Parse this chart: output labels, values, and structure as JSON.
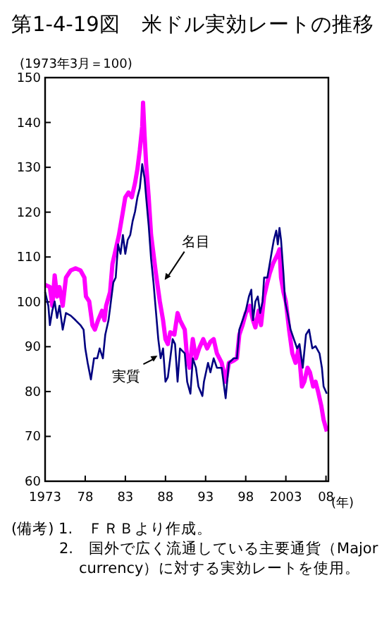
{
  "chart_data": {
    "type": "line",
    "title": "第1-4-19図　米ドル実効レートの推移",
    "ylabel": "(1973年3月＝100)",
    "xlabel": "(年)",
    "xlim": [
      1973,
      2008.3
    ],
    "ylim": [
      60,
      150
    ],
    "xticks": [
      1973,
      {
        "value": 1978,
        "label": "78"
      },
      {
        "value": 1983,
        "label": "83"
      },
      {
        "value": 1988,
        "label": "88"
      },
      {
        "value": 1993,
        "label": "93"
      },
      {
        "value": 1998,
        "label": "98"
      },
      2003,
      {
        "value": 2008,
        "label": "08"
      }
    ],
    "yticks": [
      60,
      70,
      80,
      90,
      100,
      110,
      120,
      130,
      140,
      150
    ],
    "marker": "none",
    "line_style": "solid",
    "series": [
      {
        "color": "#ff00ff",
        "x": [
          1973.0,
          1973.6,
          1973.9,
          1974.2,
          1974.5,
          1974.8,
          1975.2,
          1975.6,
          1976.2,
          1976.8,
          1977.4,
          1977.9,
          1978.1,
          1978.5,
          1978.9,
          1979.2,
          1979.6,
          1980.1,
          1980.4,
          1980.6,
          1981.1,
          1981.4,
          1981.8,
          1982.2,
          1982.7,
          1983.0,
          1983.4,
          1983.8,
          1984.2,
          1984.5,
          1984.8,
          1985.1,
          1985.2,
          1985.4,
          1985.6,
          1985.9,
          1986.2,
          1986.5,
          1986.8,
          1987.3,
          1987.7,
          1988.0,
          1988.3,
          1988.6,
          1989.1,
          1989.5,
          1989.8,
          1990.4,
          1990.7,
          1991.0,
          1991.4,
          1991.8,
          1992.2,
          1992.7,
          1993.2,
          1993.6,
          1994.0,
          1994.4,
          1995.0,
          1995.5,
          1995.9,
          1996.5,
          1996.9,
          1997.2,
          1997.6,
          1998.0,
          1998.5,
          1998.9,
          1999.2,
          1999.6,
          1999.9,
          2000.3,
          2000.7,
          2001.0,
          2001.4,
          2001.7,
          2002.0,
          2002.2,
          2002.4,
          2002.7,
          2003.0,
          2003.4,
          2003.8,
          2004.2,
          2004.6,
          2005.0,
          2005.3,
          2005.7,
          2006.0,
          2006.4,
          2006.7,
          2007.0,
          2007.4,
          2007.7,
          2008.1
        ],
        "values": [
          103.8,
          103.3,
          99.1,
          105.9,
          101.2,
          103.3,
          99.1,
          105.4,
          107.0,
          107.5,
          107.0,
          105.4,
          101.2,
          100.1,
          94.8,
          93.8,
          95.9,
          98.0,
          95.9,
          99.1,
          102.2,
          108.5,
          111.7,
          114.9,
          120.1,
          123.3,
          124.4,
          123.3,
          126.5,
          129.6,
          133.9,
          139.1,
          144.4,
          137.0,
          130.7,
          123.3,
          114.9,
          110.7,
          106.4,
          100.1,
          95.9,
          91.7,
          90.6,
          93.2,
          92.7,
          97.5,
          95.9,
          93.8,
          87.4,
          85.3,
          91.7,
          87.4,
          89.6,
          91.7,
          89.6,
          91.1,
          91.7,
          88.5,
          86.4,
          82.2,
          86.4,
          86.9,
          87.4,
          92.7,
          94.8,
          97.5,
          99.1,
          95.9,
          94.3,
          98.0,
          94.8,
          101.2,
          104.3,
          106.4,
          108.5,
          109.6,
          110.7,
          111.7,
          105.4,
          102.2,
          100.1,
          93.8,
          88.5,
          86.4,
          89.6,
          81.1,
          82.2,
          85.3,
          84.3,
          81.1,
          82.2,
          80.1,
          76.9,
          73.7,
          71.1
        ]
      },
      {
        "color": "#000080",
        "x": [
          1973.0,
          1973.4,
          1973.6,
          1973.9,
          1974.2,
          1974.5,
          1974.8,
          1975.2,
          1975.6,
          1976.2,
          1976.8,
          1977.4,
          1977.8,
          1978.0,
          1978.3,
          1978.7,
          1979.1,
          1979.5,
          1979.8,
          1980.2,
          1980.5,
          1980.9,
          1981.2,
          1981.5,
          1981.8,
          1982.1,
          1982.4,
          1982.7,
          1983.0,
          1983.3,
          1983.6,
          1983.9,
          1984.2,
          1984.5,
          1984.8,
          1985.1,
          1985.4,
          1985.6,
          1985.9,
          1986.2,
          1986.5,
          1986.8,
          1987.1,
          1987.4,
          1987.7,
          1988.0,
          1988.3,
          1988.6,
          1988.9,
          1989.2,
          1989.5,
          1989.8,
          1990.4,
          1990.7,
          1991.1,
          1991.4,
          1991.8,
          1992.1,
          1992.6,
          1992.8,
          1993.3,
          1993.6,
          1994.0,
          1994.4,
          1995.0,
          1995.3,
          1995.5,
          1995.9,
          1996.5,
          1996.9,
          1997.2,
          1997.6,
          1998.0,
          1998.4,
          1998.7,
          1998.9,
          1999.2,
          1999.5,
          1999.8,
          2000.1,
          2000.3,
          2000.7,
          2001.0,
          2001.3,
          2001.5,
          2001.8,
          2002.0,
          2002.2,
          2002.4,
          2002.7,
          2002.9,
          2003.2,
          2003.6,
          2004.0,
          2004.4,
          2004.7,
          2005.1,
          2005.5,
          2005.9,
          2006.3,
          2006.7,
          2007.2,
          2007.5,
          2007.7,
          2008.1
        ],
        "values": [
          102.2,
          99.1,
          94.8,
          98.0,
          100.1,
          96.4,
          99.1,
          93.8,
          97.5,
          96.9,
          95.9,
          94.8,
          93.8,
          89.6,
          86.4,
          82.7,
          87.4,
          87.4,
          89.6,
          87.4,
          92.7,
          95.9,
          100.1,
          104.3,
          105.4,
          112.8,
          110.7,
          114.9,
          110.7,
          113.8,
          114.9,
          118.0,
          120.1,
          123.3,
          125.4,
          130.7,
          127.5,
          123.3,
          117.0,
          109.6,
          104.3,
          98.0,
          91.7,
          87.4,
          89.6,
          82.2,
          83.2,
          87.4,
          91.7,
          90.6,
          82.2,
          89.6,
          88.5,
          82.2,
          79.5,
          87.4,
          85.3,
          81.1,
          79.0,
          82.2,
          86.4,
          84.3,
          87.4,
          85.3,
          85.3,
          81.1,
          78.5,
          86.4,
          87.4,
          87.4,
          93.8,
          95.9,
          98.0,
          101.2,
          102.7,
          95.9,
          100.1,
          101.2,
          97.5,
          100.1,
          105.4,
          105.4,
          108.5,
          111.7,
          113.8,
          115.9,
          112.8,
          116.5,
          113.8,
          106.4,
          100.1,
          97.5,
          93.8,
          91.7,
          89.6,
          90.6,
          85.3,
          92.7,
          93.8,
          89.6,
          90.1,
          88.5,
          85.3,
          81.1,
          79.5
        ]
      }
    ],
    "annotations": [
      {
        "text": "名目",
        "x": 1987.9,
        "y": 104.9
      },
      {
        "text": "実質",
        "x": 1987.0,
        "y": 88.0
      },
      "(備考) 1.　ＦＲＢより作成。",
      "2.　国外で広く流通している主要通貨（Major currency）に対する実効レートを使用。"
    ]
  }
}
